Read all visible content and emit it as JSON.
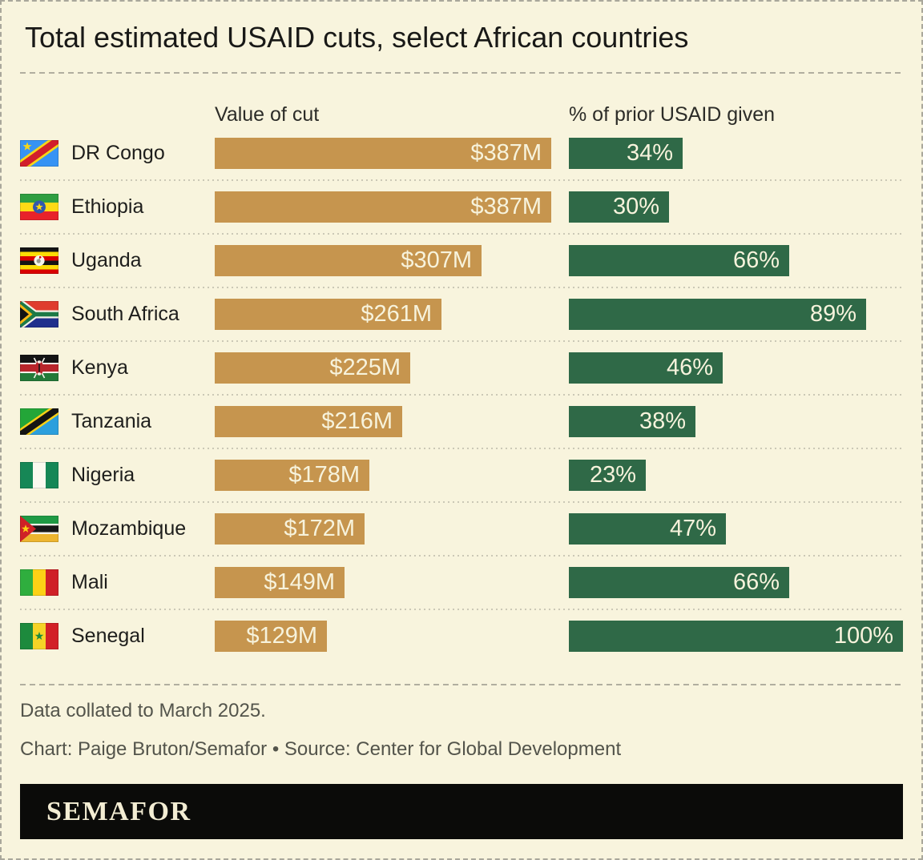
{
  "title": "Total estimated USAID cuts, select African countries",
  "columns": {
    "value": "Value of cut",
    "percent": "% of prior USAID given"
  },
  "chart_data": {
    "type": "bar",
    "orientation": "horizontal",
    "title": "Total estimated USAID cuts, select African countries",
    "legend": false,
    "grid": false,
    "value_labels_position": "inside-end",
    "categories": [
      "DR Congo",
      "Ethiopia",
      "Uganda",
      "South Africa",
      "Kenya",
      "Tanzania",
      "Nigeria",
      "Mozambique",
      "Mali",
      "Senegal"
    ],
    "flags": [
      "cd",
      "et",
      "ug",
      "za",
      "ke",
      "tz",
      "ng",
      "mz",
      "ml",
      "sn"
    ],
    "series": [
      {
        "name": "Value of cut",
        "unit": "USD millions",
        "color": "#c6954e",
        "axis_max": 387,
        "values": [
          387,
          387,
          307,
          261,
          225,
          216,
          178,
          172,
          149,
          129
        ],
        "labels": [
          "$387M",
          "$387M",
          "$307M",
          "$261M",
          "$225M",
          "$216M",
          "$178M",
          "$172M",
          "$149M",
          "$129M"
        ]
      },
      {
        "name": "% of prior USAID given",
        "unit": "percent",
        "color": "#2f6947",
        "axis_max": 100,
        "values": [
          34,
          30,
          66,
          89,
          46,
          38,
          23,
          47,
          66,
          100
        ],
        "labels": [
          "34%",
          "30%",
          "66%",
          "89%",
          "46%",
          "38%",
          "23%",
          "47%",
          "66%",
          "100%"
        ]
      }
    ]
  },
  "notes": {
    "line1": "Data collated to March 2025.",
    "line2": "Chart: Paige Bruton/Semafor • Source: Center for Global Development"
  },
  "logo": {
    "text": "SEMAFOR"
  },
  "colors": {
    "background": "#f8f4dd",
    "gold_bar": "#c6954e",
    "green_bar": "#2f6947",
    "bar_label": "#f7f3dc",
    "title_text": "#191917",
    "muted_text": "#53544b",
    "logo_bar": "#0b0b09"
  }
}
